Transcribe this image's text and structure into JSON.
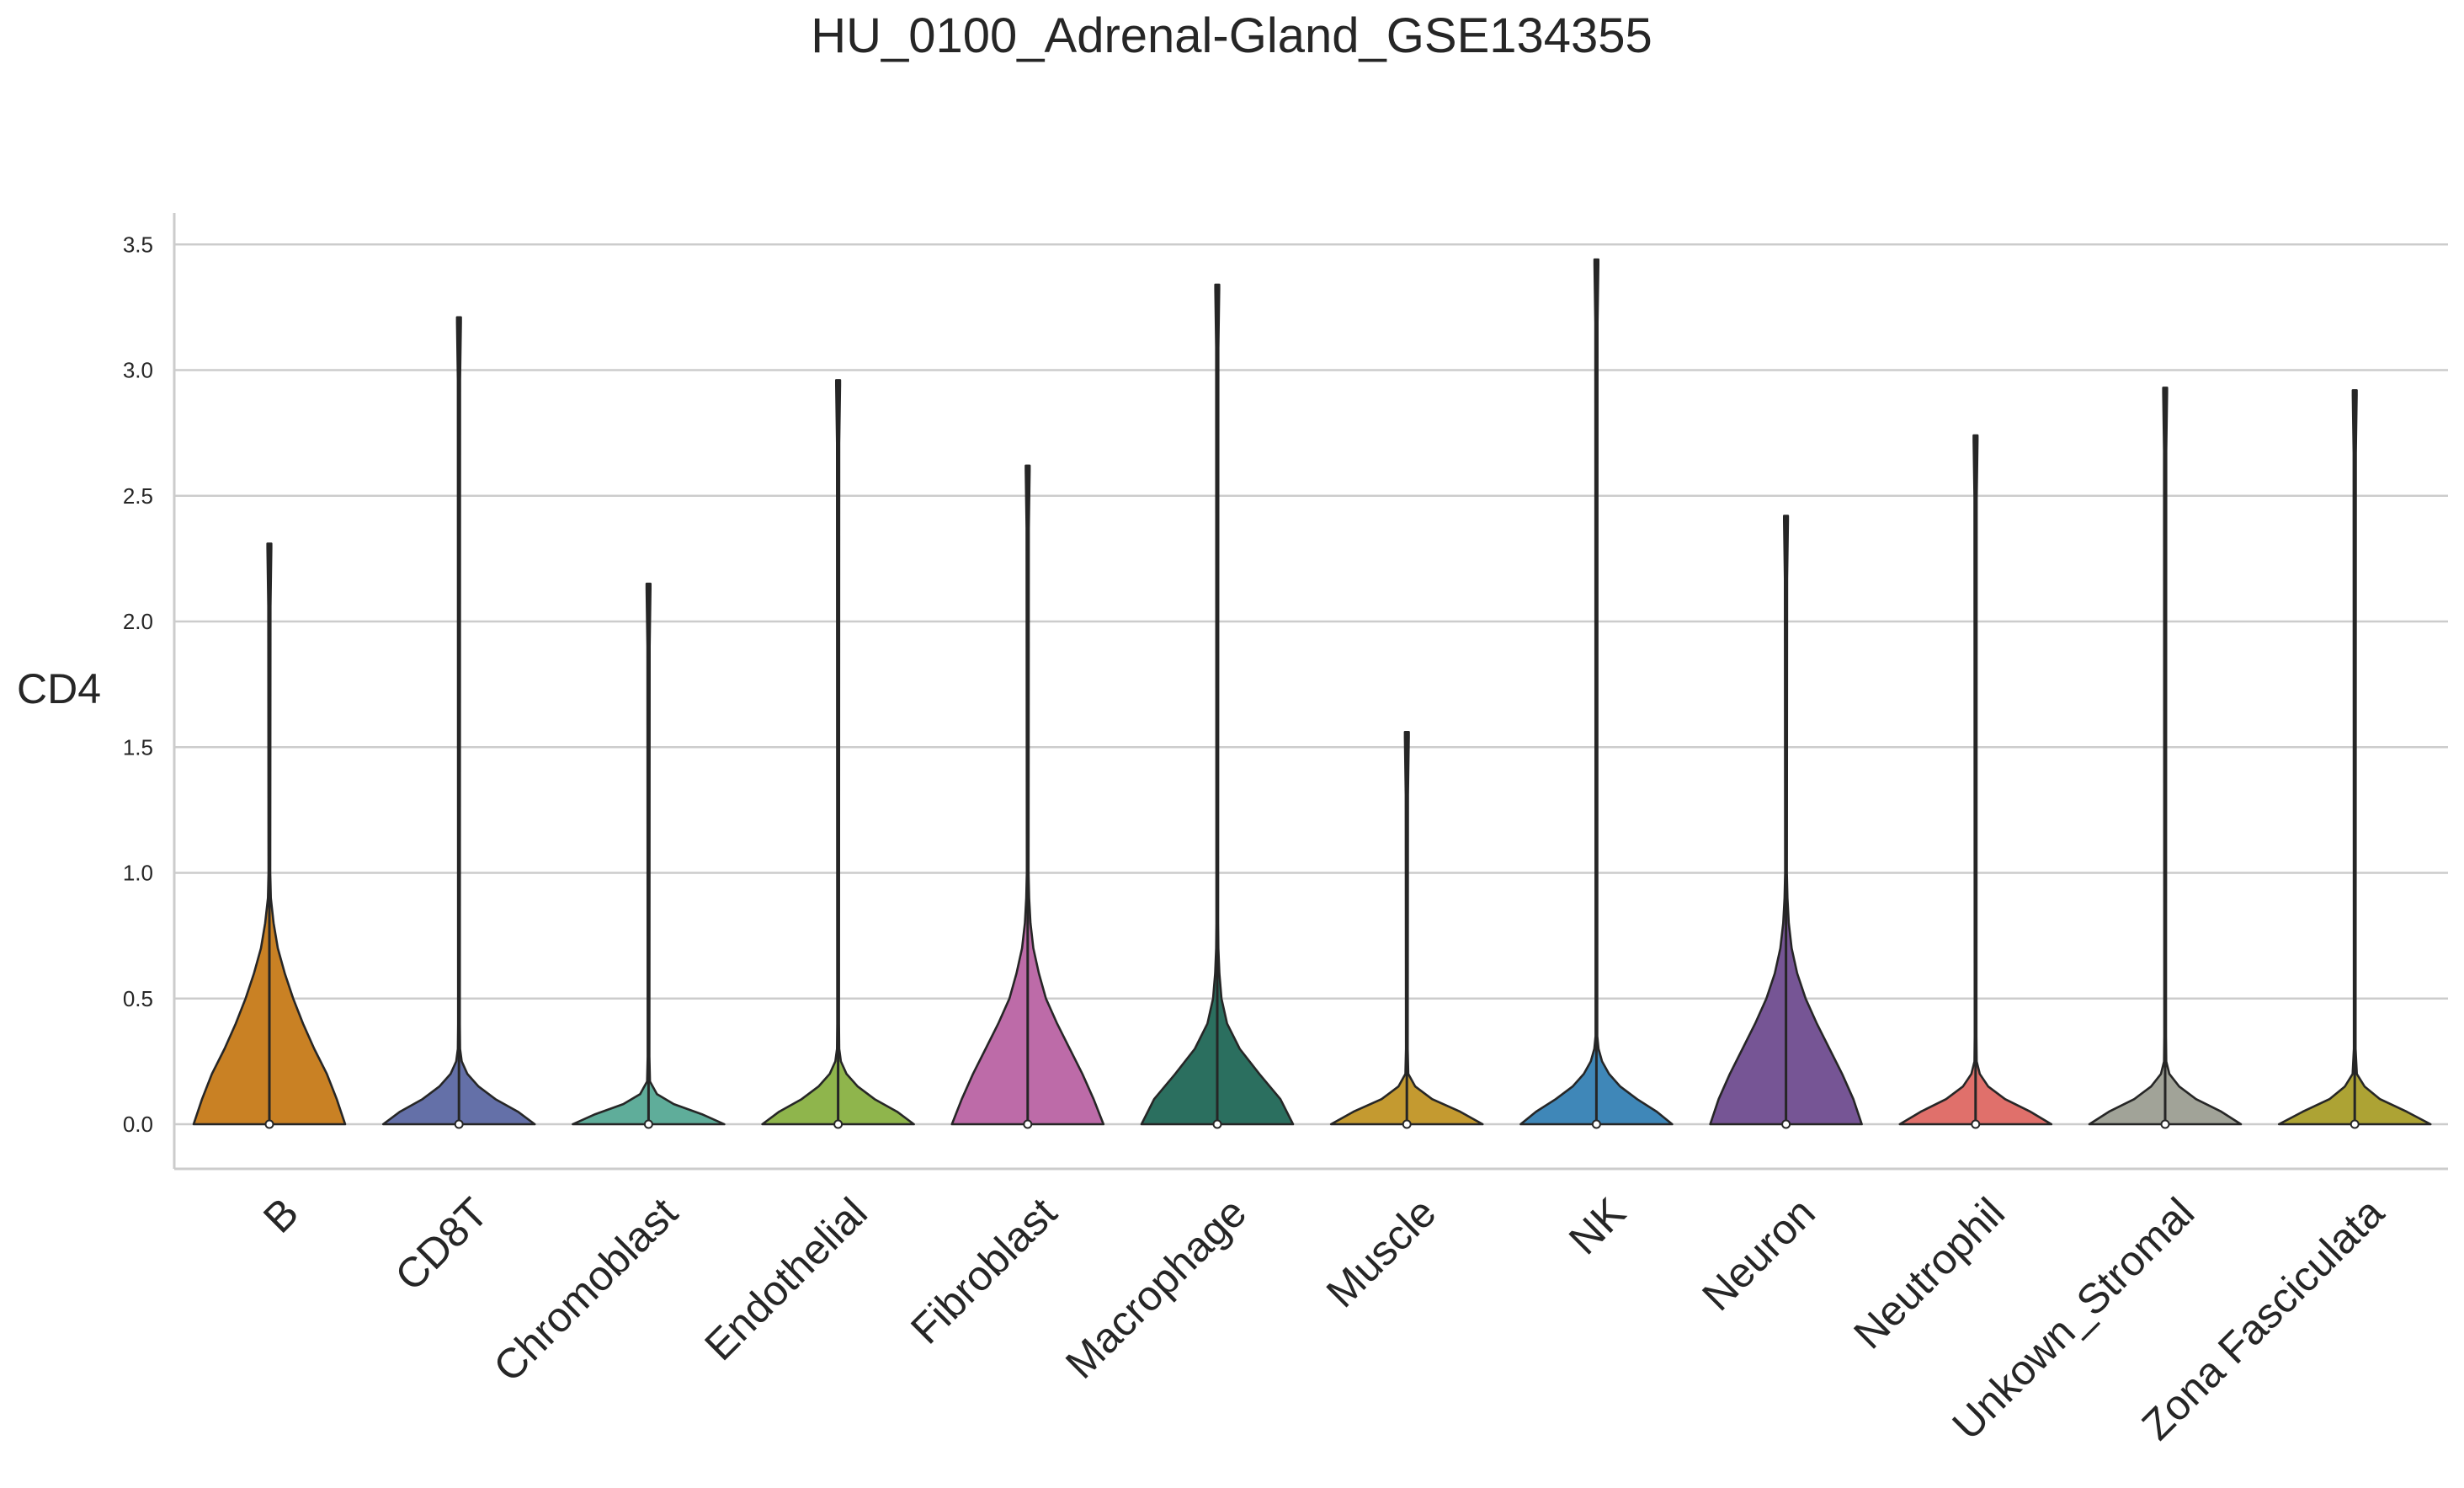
{
  "chart_data": {
    "type": "violin",
    "title": "HU_0100_Adrenal-Gland_GSE134355",
    "xlabel": "",
    "ylabel": "CD4",
    "ylim": [
      -0.17,
      3.62
    ],
    "yticks": [
      "0.0",
      "0.5",
      "1.0",
      "1.5",
      "2.0",
      "2.5",
      "3.0",
      "3.5"
    ],
    "grid": "horizontal",
    "legend": "none",
    "categories": [
      "B",
      "CD8T",
      "Chromoblast",
      "Endothelial",
      "Fibroblast",
      "Macrophage",
      "Muscle",
      "NK",
      "Neuron",
      "Neutrophil",
      "Unkown_Stromal",
      "Zona Fasciculata"
    ],
    "series": [
      {
        "category": "B",
        "max": 2.31,
        "median": 0.0,
        "color": "#c98124",
        "tip_max": 0.9,
        "profile": [
          [
            0,
            0.54
          ],
          [
            0.1,
            0.48
          ],
          [
            0.2,
            0.41
          ],
          [
            0.3,
            0.32
          ],
          [
            0.4,
            0.24
          ],
          [
            0.5,
            0.17
          ],
          [
            0.6,
            0.11
          ],
          [
            0.7,
            0.06
          ],
          [
            0.8,
            0.03
          ],
          [
            0.9,
            0.01
          ]
        ]
      },
      {
        "category": "CD8T",
        "max": 3.21,
        "median": 0.0,
        "color": "#6470a8",
        "tip_max": 0.3,
        "profile": [
          [
            0,
            0.54
          ],
          [
            0.05,
            0.42
          ],
          [
            0.1,
            0.26
          ],
          [
            0.15,
            0.14
          ],
          [
            0.2,
            0.06
          ],
          [
            0.25,
            0.02
          ],
          [
            0.3,
            0.008
          ]
        ]
      },
      {
        "category": "Chromoblast",
        "max": 2.15,
        "median": 0.0,
        "color": "#5fad9a",
        "tip_max": 0.17,
        "profile": [
          [
            0,
            0.54
          ],
          [
            0.04,
            0.38
          ],
          [
            0.08,
            0.18
          ],
          [
            0.12,
            0.06
          ],
          [
            0.17,
            0.01
          ]
        ]
      },
      {
        "category": "Endothelial",
        "max": 2.96,
        "median": 0.0,
        "color": "#8fb54c",
        "tip_max": 0.3,
        "profile": [
          [
            0,
            0.54
          ],
          [
            0.05,
            0.42
          ],
          [
            0.1,
            0.26
          ],
          [
            0.15,
            0.14
          ],
          [
            0.2,
            0.06
          ],
          [
            0.25,
            0.02
          ],
          [
            0.3,
            0.008
          ]
        ]
      },
      {
        "category": "Fibroblast",
        "max": 2.62,
        "median": 0.0,
        "color": "#bd6ba8",
        "tip_max": 0.9,
        "profile": [
          [
            0,
            0.54
          ],
          [
            0.1,
            0.47
          ],
          [
            0.2,
            0.39
          ],
          [
            0.3,
            0.3
          ],
          [
            0.4,
            0.21
          ],
          [
            0.5,
            0.13
          ],
          [
            0.6,
            0.08
          ],
          [
            0.7,
            0.04
          ],
          [
            0.8,
            0.02
          ],
          [
            0.9,
            0.01
          ]
        ]
      },
      {
        "category": "Macrophage",
        "max": 3.34,
        "median": 0.0,
        "color": "#2b6f5f",
        "tip_max": 0.7,
        "profile": [
          [
            0,
            0.54
          ],
          [
            0.1,
            0.45
          ],
          [
            0.2,
            0.3
          ],
          [
            0.3,
            0.16
          ],
          [
            0.4,
            0.07
          ],
          [
            0.5,
            0.03
          ],
          [
            0.6,
            0.015
          ],
          [
            0.7,
            0.008
          ]
        ]
      },
      {
        "category": "Muscle",
        "max": 1.56,
        "median": 0.0,
        "color": "#c49a30",
        "tip_max": 0.2,
        "profile": [
          [
            0,
            0.54
          ],
          [
            0.05,
            0.38
          ],
          [
            0.1,
            0.18
          ],
          [
            0.15,
            0.06
          ],
          [
            0.2,
            0.01
          ]
        ]
      },
      {
        "category": "NK",
        "max": 3.44,
        "median": 0.0,
        "color": "#3f87b8",
        "tip_max": 0.35,
        "profile": [
          [
            0,
            0.54
          ],
          [
            0.05,
            0.43
          ],
          [
            0.1,
            0.29
          ],
          [
            0.15,
            0.17
          ],
          [
            0.2,
            0.09
          ],
          [
            0.25,
            0.04
          ],
          [
            0.3,
            0.015
          ],
          [
            0.35,
            0.006
          ]
        ]
      },
      {
        "category": "Neuron",
        "max": 2.42,
        "median": 0.0,
        "color": "#765595",
        "tip_max": 0.9,
        "profile": [
          [
            0,
            0.54
          ],
          [
            0.1,
            0.48
          ],
          [
            0.2,
            0.4
          ],
          [
            0.3,
            0.31
          ],
          [
            0.4,
            0.22
          ],
          [
            0.5,
            0.14
          ],
          [
            0.6,
            0.08
          ],
          [
            0.7,
            0.04
          ],
          [
            0.8,
            0.02
          ],
          [
            0.9,
            0.01
          ]
        ]
      },
      {
        "category": "Neutrophil",
        "max": 2.74,
        "median": 0.0,
        "color": "#e0706b",
        "tip_max": 0.25,
        "profile": [
          [
            0,
            0.54
          ],
          [
            0.05,
            0.39
          ],
          [
            0.1,
            0.21
          ],
          [
            0.15,
            0.09
          ],
          [
            0.2,
            0.03
          ],
          [
            0.25,
            0.008
          ]
        ]
      },
      {
        "category": "Unkown_Stromal",
        "max": 2.93,
        "median": 0.0,
        "color": "#a1a398",
        "tip_max": 0.25,
        "profile": [
          [
            0,
            0.54
          ],
          [
            0.05,
            0.4
          ],
          [
            0.1,
            0.22
          ],
          [
            0.15,
            0.1
          ],
          [
            0.2,
            0.03
          ],
          [
            0.25,
            0.008
          ]
        ]
      },
      {
        "category": "Zona Fasciculata",
        "max": 2.92,
        "median": 0.0,
        "color": "#ada334",
        "tip_max": 0.2,
        "profile": [
          [
            0,
            0.54
          ],
          [
            0.05,
            0.37
          ],
          [
            0.1,
            0.18
          ],
          [
            0.15,
            0.07
          ],
          [
            0.2,
            0.015
          ]
        ]
      }
    ]
  }
}
